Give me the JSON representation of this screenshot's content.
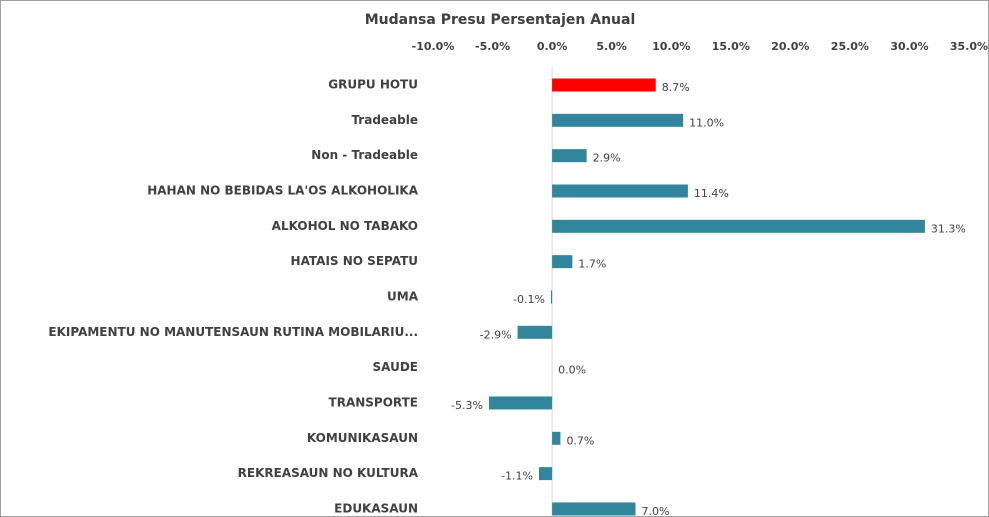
{
  "chart_data": {
    "type": "bar",
    "orientation": "horizontal",
    "title": "Mudansa Presu Persentajen Anual",
    "categories": [
      "GRUPU HOTU",
      "Tradeable",
      "Non - Tradeable",
      "HAHAN NO BEBIDAS LA'OS ALKOHOLIKA",
      "ALKOHOL NO TABAKO",
      "HATAIS NO SEPATU",
      "UMA",
      "EKIPAMENTU NO MANUTENSAUN RUTINA MOBILARIU...",
      "SAUDE",
      "TRANSPORTE",
      "KOMUNIKASAUN",
      "REKREASAUN NO KULTURA",
      "EDUKASAUN"
    ],
    "values": [
      8.7,
      11.0,
      2.9,
      11.4,
      31.3,
      1.7,
      -0.1,
      -2.9,
      0.0,
      -5.3,
      0.7,
      -1.1,
      7.0
    ],
    "value_labels": [
      "8.7%",
      "11.0%",
      "2.9%",
      "11.4%",
      "31.3%",
      "1.7%",
      "-0.1%",
      "-2.9%",
      "0.0%",
      "-5.3%",
      "0.7%",
      "-1.1%",
      "7.0%"
    ],
    "colors": [
      "#ff0000",
      "#31859c",
      "#31859c",
      "#31859c",
      "#31859c",
      "#31859c",
      "#31859c",
      "#31859c",
      "#31859c",
      "#31859c",
      "#31859c",
      "#31859c",
      "#31859c"
    ],
    "xlim": [
      -10,
      35
    ],
    "xticks": [
      {
        "value": -10,
        "label": "-10.0%"
      },
      {
        "value": -5,
        "label": "-5.0%"
      },
      {
        "value": 0,
        "label": "0.0%"
      },
      {
        "value": 5,
        "label": "5.0%"
      },
      {
        "value": 10,
        "label": "10.0%"
      },
      {
        "value": 15,
        "label": "15.0%"
      },
      {
        "value": 20,
        "label": "20.0%"
      },
      {
        "value": 25,
        "label": "25.0%"
      },
      {
        "value": 30,
        "label": "30.0%"
      },
      {
        "value": 35,
        "label": "35.0%"
      }
    ],
    "grid": false
  }
}
